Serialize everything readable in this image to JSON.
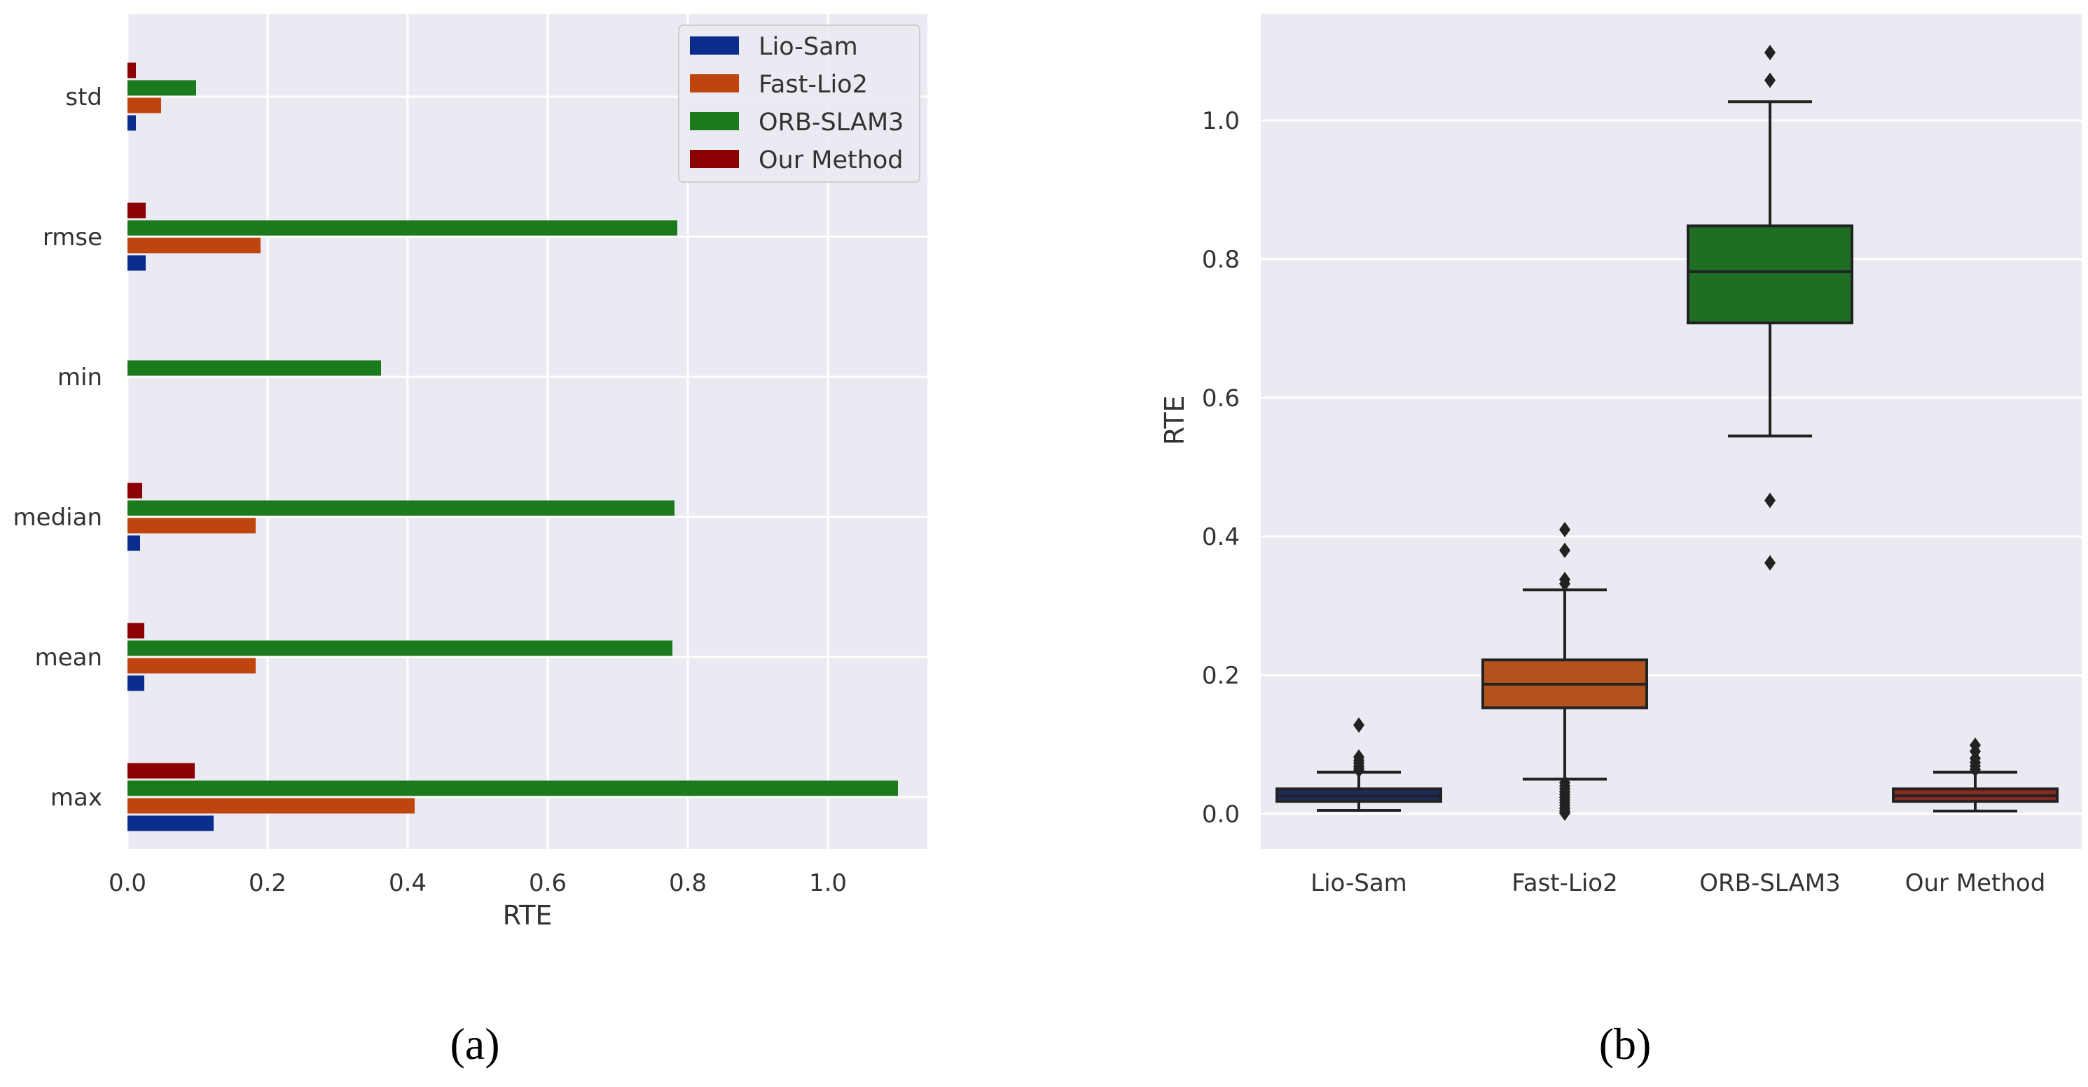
{
  "colors": {
    "background": "#EAEAF2",
    "grid": "#FFFFFF",
    "series": [
      "#0A2C8C",
      "#C0440E",
      "#1B7A1B",
      "#8B0000"
    ],
    "box_fill": [
      "#1A2B5C",
      "#B4521E",
      "#1E6E24",
      "#8B2A1E"
    ]
  },
  "chart_data": [
    {
      "type": "bar",
      "orientation": "horizontal",
      "panel_label": "(a)",
      "categories": [
        "std",
        "rmse",
        "min",
        "median",
        "mean",
        "max"
      ],
      "series": [
        {
          "name": "Lio-Sam",
          "values": [
            0.012,
            0.026,
            0.0,
            0.018,
            0.024,
            0.123
          ]
        },
        {
          "name": "Fast-Lio2",
          "values": [
            0.048,
            0.19,
            0.0,
            0.183,
            0.183,
            0.41
          ]
        },
        {
          "name": "ORB-SLAM3",
          "values": [
            0.098,
            0.785,
            0.362,
            0.781,
            0.778,
            1.1
          ]
        },
        {
          "name": "Our Method",
          "values": [
            0.012,
            0.026,
            0.0,
            0.021,
            0.024,
            0.096
          ]
        }
      ],
      "xlabel": "RTE",
      "ylabel": "",
      "xlim": [
        0.0,
        1.15
      ],
      "xticks": [
        "0.0",
        "0.2",
        "0.4",
        "0.6",
        "0.8",
        "1.0"
      ],
      "legend": {
        "position": "top-right",
        "entries": [
          "Lio-Sam",
          "Fast-Lio2",
          "ORB-SLAM3",
          "Our Method"
        ]
      },
      "grid": true
    },
    {
      "type": "box",
      "panel_label": "(b)",
      "categories": [
        "Lio-Sam",
        "Fast-Lio2",
        "ORB-SLAM3",
        "Our Method"
      ],
      "boxes": [
        {
          "q1": 0.018,
          "median": 0.026,
          "q3": 0.036,
          "whisker_low": 0.005,
          "whisker_high": 0.06,
          "outliers": [
            0.128,
            0.082,
            0.077,
            0.073,
            0.069,
            0.066,
            0.063
          ]
        },
        {
          "q1": 0.153,
          "median": 0.187,
          "q3": 0.222,
          "whisker_low": 0.05,
          "whisker_high": 0.323,
          "outliers": [
            0.41,
            0.38,
            0.338,
            0.332,
            0.045,
            0.04,
            0.036,
            0.032,
            0.028,
            0.024,
            0.02,
            0.016,
            0.012,
            0.008,
            0.004,
            0.001
          ]
        },
        {
          "q1": 0.708,
          "median": 0.782,
          "q3": 0.848,
          "whisker_low": 0.545,
          "whisker_high": 1.027,
          "outliers": [
            1.098,
            1.058,
            0.452,
            0.362
          ]
        },
        {
          "q1": 0.018,
          "median": 0.026,
          "q3": 0.036,
          "whisker_low": 0.004,
          "whisker_high": 0.06,
          "outliers": [
            0.099,
            0.09,
            0.08,
            0.074,
            0.069,
            0.064
          ]
        }
      ],
      "xlabel": "",
      "ylabel": "RTE",
      "ylim": [
        -0.05,
        1.14
      ],
      "yticks": [
        "0.0",
        "0.2",
        "0.4",
        "0.6",
        "0.8",
        "1.0"
      ],
      "grid": true
    }
  ]
}
